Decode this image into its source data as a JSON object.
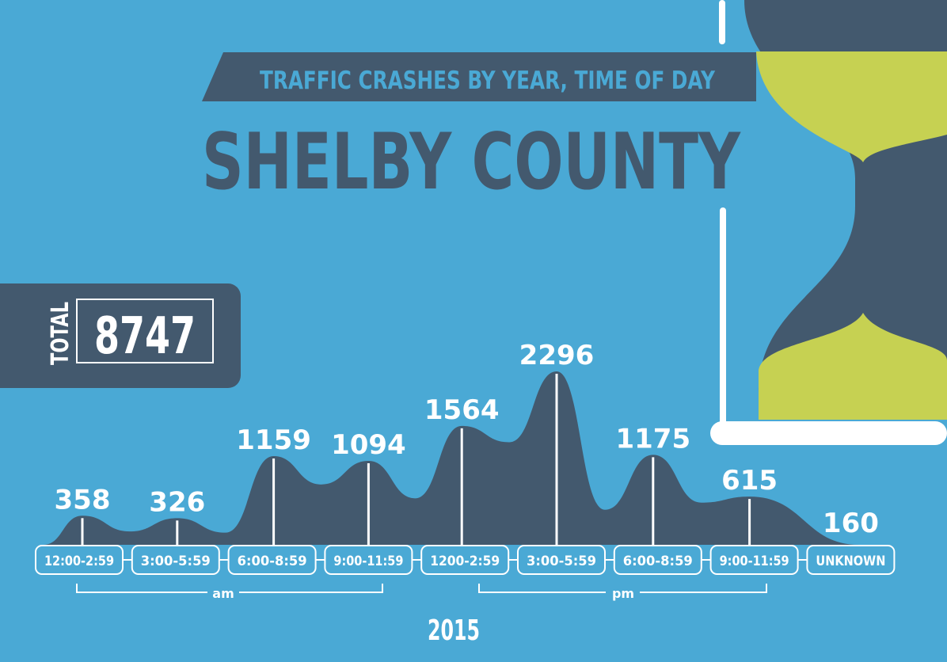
{
  "header": {
    "subtitle": "TRAFFIC CRASHES BY YEAR, TIME OF DAY",
    "title": "SHELBY COUNTY"
  },
  "total": {
    "label": "TOTAL",
    "value": "8747"
  },
  "colors": {
    "background": "#4aa9d5",
    "dark": "#43596e",
    "white": "#ffffff",
    "sand": "#c6d152",
    "subtitle_text": "#4aa9d5"
  },
  "icons": [
    "hourglass-icon"
  ],
  "chart_data": {
    "type": "area",
    "categories": [
      "12:00-2:59",
      "3:00-5:59",
      "6:00-8:59",
      "9:00-11:59",
      "1200-2:59",
      "3:00-5:59",
      "6:00-8:59",
      "9:00-11:59",
      "UNKNOWN"
    ],
    "values": [
      358,
      326,
      1159,
      1094,
      1564,
      2296,
      1175,
      615,
      160
    ],
    "data_labels": [
      "358",
      "326",
      "1159",
      "1094",
      "1564",
      "2296",
      "1175",
      "615",
      "160"
    ],
    "groups": [
      {
        "label": "am",
        "from": 0,
        "to": 3
      },
      {
        "label": "pm",
        "from": 4,
        "to": 7
      }
    ],
    "year": "2015",
    "ylim": [
      0,
      2400
    ]
  }
}
